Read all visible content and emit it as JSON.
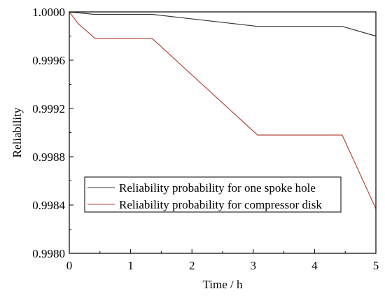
{
  "chart_data": {
    "type": "line",
    "xlabel": "Time / h",
    "ylabel": "Reliability",
    "xlim": [
      0,
      5
    ],
    "ylim": [
      0.998,
      1.0
    ],
    "x_ticks": [
      "0",
      "1",
      "2",
      "3",
      "4",
      "5"
    ],
    "y_ticks": [
      "0.9980",
      "0.9984",
      "0.9988",
      "0.9992",
      "0.9996",
      "1.0000"
    ],
    "grid": false,
    "legend_position": "lower-left",
    "series": [
      {
        "name": "Reliability probability for one spoke hole",
        "color": "#333333",
        "x": [
          0,
          0.4,
          1.35,
          3.07,
          4.45,
          5.0
        ],
        "y": [
          1.0,
          0.99998,
          0.99998,
          0.99988,
          0.99988,
          0.9998
        ]
      },
      {
        "name": "Reliability probability for compressor disk",
        "color": "#b5483f",
        "x": [
          0,
          0.15,
          0.42,
          1.35,
          3.07,
          4.45,
          5.0
        ],
        "y": [
          1.0,
          0.9999,
          0.99978,
          0.99978,
          0.99898,
          0.99898,
          0.99837
        ]
      }
    ]
  }
}
